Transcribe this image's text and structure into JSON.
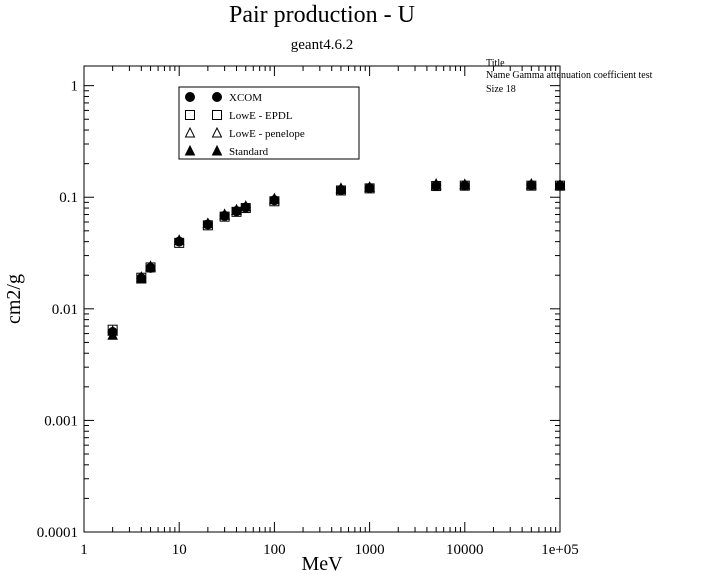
{
  "chart_data": {
    "type": "scatter",
    "title": "Pair production - U",
    "subtitle": "geant4.6.2",
    "xlabel": "MeV",
    "ylabel": "cm2/g",
    "xscale": "log",
    "yscale": "log",
    "xlim": [
      1,
      100000
    ],
    "ylim": [
      0.0001,
      1.5
    ],
    "x_tick_labels": [
      "1",
      "10",
      "100",
      "1000",
      "10000",
      "1e+05"
    ],
    "y_tick_labels": [
      "0.0001",
      "0.001",
      "0.01",
      "0.1",
      "1"
    ],
    "grid": false,
    "legend_position": "top-left",
    "info_box": {
      "line1": "Title",
      "line2": "Name  Gamma attenuation coefficient test",
      "line3": "Size  18"
    },
    "series": [
      {
        "name": "XCOM",
        "marker": "circle-filled",
        "x": [
          2,
          4,
          5,
          10,
          20,
          30,
          40,
          50,
          100,
          500,
          1000,
          5000,
          10000,
          50000,
          100000
        ],
        "y": [
          0.0062,
          0.0188,
          0.0233,
          0.04,
          0.057,
          0.068,
          0.075,
          0.081,
          0.094,
          0.116,
          0.121,
          0.127,
          0.127,
          0.128,
          0.127
        ]
      },
      {
        "name": "LowE - EPDL",
        "marker": "square-open",
        "x": [
          2,
          4,
          5,
          10,
          20,
          30,
          40,
          50,
          100,
          500,
          1000,
          5000,
          10000,
          50000,
          100000
        ],
        "y": [
          0.0065,
          0.019,
          0.0235,
          0.039,
          0.056,
          0.067,
          0.074,
          0.08,
          0.092,
          0.115,
          0.12,
          0.126,
          0.127,
          0.127,
          0.127
        ]
      },
      {
        "name": "LowE - penelope",
        "marker": "triangle-open",
        "x": [
          2,
          4,
          5,
          10,
          20,
          30,
          40,
          50,
          100,
          500,
          1000,
          5000,
          10000,
          50000,
          100000
        ],
        "y": [
          0.0063,
          0.0192,
          0.0238,
          0.041,
          0.058,
          0.069,
          0.076,
          0.082,
          0.095,
          0.117,
          0.122,
          0.128,
          0.129,
          0.129,
          0.128
        ]
      },
      {
        "name": "Standard",
        "marker": "triangle-filled",
        "x": [
          2,
          4,
          5,
          10,
          20,
          30,
          40,
          50,
          100,
          500,
          1000,
          5000,
          10000,
          50000,
          100000
        ],
        "y": [
          0.0058,
          0.0185,
          0.024,
          0.041,
          0.058,
          0.07,
          0.077,
          0.083,
          0.097,
          0.12,
          0.123,
          0.131,
          0.13,
          0.131,
          0.129
        ]
      }
    ]
  }
}
